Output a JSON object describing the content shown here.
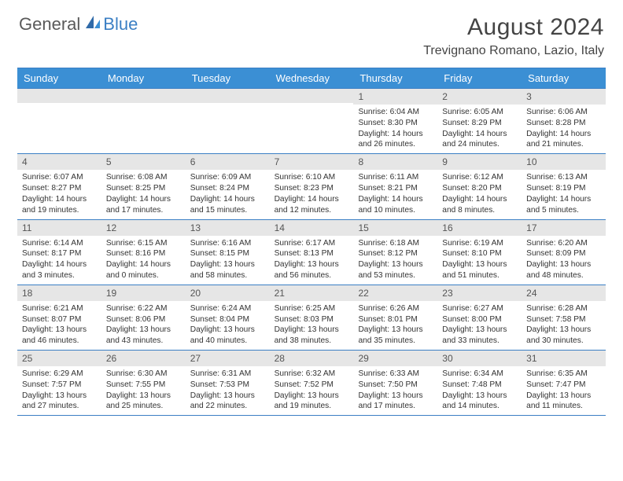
{
  "logo": {
    "general": "General",
    "blue": "Blue"
  },
  "title": {
    "month": "August 2024",
    "location": "Trevignano Romano, Lazio, Italy"
  },
  "colors": {
    "accent": "#3b8fd4",
    "rule": "#3b7fc4",
    "strip": "#e6e6e6",
    "text": "#333333",
    "background": "#ffffff"
  },
  "day_headers": [
    "Sunday",
    "Monday",
    "Tuesday",
    "Wednesday",
    "Thursday",
    "Friday",
    "Saturday"
  ],
  "weeks": [
    [
      null,
      null,
      null,
      null,
      {
        "date": "1",
        "sunrise": "Sunrise: 6:04 AM",
        "sunset": "Sunset: 8:30 PM",
        "daylight1": "Daylight: 14 hours",
        "daylight2": "and 26 minutes."
      },
      {
        "date": "2",
        "sunrise": "Sunrise: 6:05 AM",
        "sunset": "Sunset: 8:29 PM",
        "daylight1": "Daylight: 14 hours",
        "daylight2": "and 24 minutes."
      },
      {
        "date": "3",
        "sunrise": "Sunrise: 6:06 AM",
        "sunset": "Sunset: 8:28 PM",
        "daylight1": "Daylight: 14 hours",
        "daylight2": "and 21 minutes."
      }
    ],
    [
      {
        "date": "4",
        "sunrise": "Sunrise: 6:07 AM",
        "sunset": "Sunset: 8:27 PM",
        "daylight1": "Daylight: 14 hours",
        "daylight2": "and 19 minutes."
      },
      {
        "date": "5",
        "sunrise": "Sunrise: 6:08 AM",
        "sunset": "Sunset: 8:25 PM",
        "daylight1": "Daylight: 14 hours",
        "daylight2": "and 17 minutes."
      },
      {
        "date": "6",
        "sunrise": "Sunrise: 6:09 AM",
        "sunset": "Sunset: 8:24 PM",
        "daylight1": "Daylight: 14 hours",
        "daylight2": "and 15 minutes."
      },
      {
        "date": "7",
        "sunrise": "Sunrise: 6:10 AM",
        "sunset": "Sunset: 8:23 PM",
        "daylight1": "Daylight: 14 hours",
        "daylight2": "and 12 minutes."
      },
      {
        "date": "8",
        "sunrise": "Sunrise: 6:11 AM",
        "sunset": "Sunset: 8:21 PM",
        "daylight1": "Daylight: 14 hours",
        "daylight2": "and 10 minutes."
      },
      {
        "date": "9",
        "sunrise": "Sunrise: 6:12 AM",
        "sunset": "Sunset: 8:20 PM",
        "daylight1": "Daylight: 14 hours",
        "daylight2": "and 8 minutes."
      },
      {
        "date": "10",
        "sunrise": "Sunrise: 6:13 AM",
        "sunset": "Sunset: 8:19 PM",
        "daylight1": "Daylight: 14 hours",
        "daylight2": "and 5 minutes."
      }
    ],
    [
      {
        "date": "11",
        "sunrise": "Sunrise: 6:14 AM",
        "sunset": "Sunset: 8:17 PM",
        "daylight1": "Daylight: 14 hours",
        "daylight2": "and 3 minutes."
      },
      {
        "date": "12",
        "sunrise": "Sunrise: 6:15 AM",
        "sunset": "Sunset: 8:16 PM",
        "daylight1": "Daylight: 14 hours",
        "daylight2": "and 0 minutes."
      },
      {
        "date": "13",
        "sunrise": "Sunrise: 6:16 AM",
        "sunset": "Sunset: 8:15 PM",
        "daylight1": "Daylight: 13 hours",
        "daylight2": "and 58 minutes."
      },
      {
        "date": "14",
        "sunrise": "Sunrise: 6:17 AM",
        "sunset": "Sunset: 8:13 PM",
        "daylight1": "Daylight: 13 hours",
        "daylight2": "and 56 minutes."
      },
      {
        "date": "15",
        "sunrise": "Sunrise: 6:18 AM",
        "sunset": "Sunset: 8:12 PM",
        "daylight1": "Daylight: 13 hours",
        "daylight2": "and 53 minutes."
      },
      {
        "date": "16",
        "sunrise": "Sunrise: 6:19 AM",
        "sunset": "Sunset: 8:10 PM",
        "daylight1": "Daylight: 13 hours",
        "daylight2": "and 51 minutes."
      },
      {
        "date": "17",
        "sunrise": "Sunrise: 6:20 AM",
        "sunset": "Sunset: 8:09 PM",
        "daylight1": "Daylight: 13 hours",
        "daylight2": "and 48 minutes."
      }
    ],
    [
      {
        "date": "18",
        "sunrise": "Sunrise: 6:21 AM",
        "sunset": "Sunset: 8:07 PM",
        "daylight1": "Daylight: 13 hours",
        "daylight2": "and 46 minutes."
      },
      {
        "date": "19",
        "sunrise": "Sunrise: 6:22 AM",
        "sunset": "Sunset: 8:06 PM",
        "daylight1": "Daylight: 13 hours",
        "daylight2": "and 43 minutes."
      },
      {
        "date": "20",
        "sunrise": "Sunrise: 6:24 AM",
        "sunset": "Sunset: 8:04 PM",
        "daylight1": "Daylight: 13 hours",
        "daylight2": "and 40 minutes."
      },
      {
        "date": "21",
        "sunrise": "Sunrise: 6:25 AM",
        "sunset": "Sunset: 8:03 PM",
        "daylight1": "Daylight: 13 hours",
        "daylight2": "and 38 minutes."
      },
      {
        "date": "22",
        "sunrise": "Sunrise: 6:26 AM",
        "sunset": "Sunset: 8:01 PM",
        "daylight1": "Daylight: 13 hours",
        "daylight2": "and 35 minutes."
      },
      {
        "date": "23",
        "sunrise": "Sunrise: 6:27 AM",
        "sunset": "Sunset: 8:00 PM",
        "daylight1": "Daylight: 13 hours",
        "daylight2": "and 33 minutes."
      },
      {
        "date": "24",
        "sunrise": "Sunrise: 6:28 AM",
        "sunset": "Sunset: 7:58 PM",
        "daylight1": "Daylight: 13 hours",
        "daylight2": "and 30 minutes."
      }
    ],
    [
      {
        "date": "25",
        "sunrise": "Sunrise: 6:29 AM",
        "sunset": "Sunset: 7:57 PM",
        "daylight1": "Daylight: 13 hours",
        "daylight2": "and 27 minutes."
      },
      {
        "date": "26",
        "sunrise": "Sunrise: 6:30 AM",
        "sunset": "Sunset: 7:55 PM",
        "daylight1": "Daylight: 13 hours",
        "daylight2": "and 25 minutes."
      },
      {
        "date": "27",
        "sunrise": "Sunrise: 6:31 AM",
        "sunset": "Sunset: 7:53 PM",
        "daylight1": "Daylight: 13 hours",
        "daylight2": "and 22 minutes."
      },
      {
        "date": "28",
        "sunrise": "Sunrise: 6:32 AM",
        "sunset": "Sunset: 7:52 PM",
        "daylight1": "Daylight: 13 hours",
        "daylight2": "and 19 minutes."
      },
      {
        "date": "29",
        "sunrise": "Sunrise: 6:33 AM",
        "sunset": "Sunset: 7:50 PM",
        "daylight1": "Daylight: 13 hours",
        "daylight2": "and 17 minutes."
      },
      {
        "date": "30",
        "sunrise": "Sunrise: 6:34 AM",
        "sunset": "Sunset: 7:48 PM",
        "daylight1": "Daylight: 13 hours",
        "daylight2": "and 14 minutes."
      },
      {
        "date": "31",
        "sunrise": "Sunrise: 6:35 AM",
        "sunset": "Sunset: 7:47 PM",
        "daylight1": "Daylight: 13 hours",
        "daylight2": "and 11 minutes."
      }
    ]
  ]
}
